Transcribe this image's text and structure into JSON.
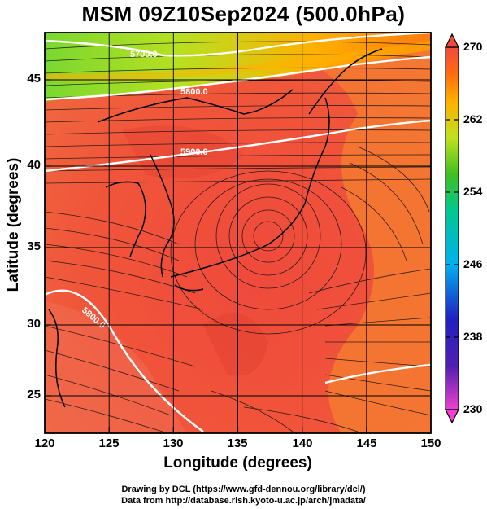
{
  "title": "MSM 09Z10Sep2024 (500.0hPa)",
  "x_axis": {
    "label": "Longitude (degrees)",
    "ticks": [
      "120",
      "125",
      "130",
      "135",
      "140",
      "145",
      "150"
    ]
  },
  "y_axis": {
    "label": "Latitude  (degrees)",
    "ticks": [
      "45",
      "40",
      "35",
      "30",
      "25"
    ]
  },
  "colorbar": {
    "ticks": [
      "270",
      "262",
      "254",
      "246",
      "238",
      "230"
    ],
    "min": 230,
    "max": 270,
    "colors": [
      "#f040d0",
      "#2020c0",
      "#00b0f0",
      "#00c890",
      "#40c020",
      "#c0e020",
      "#ffb000",
      "#ff6a10",
      "#f04a40"
    ]
  },
  "contours": {
    "labels": [
      "5700.0",
      "5800.0",
      "5900.0",
      "5800.0"
    ]
  },
  "credits": {
    "line1": "Drawing by DCL (https://www.gfd-dennou.org/library/dcl/)",
    "line2": "Data from http://database.rish.kyoto-u.ac.jp/arch/jmadata/"
  },
  "chart_data": {
    "type": "heatmap",
    "title": "MSM 09Z10Sep2024 (500.0hPa)",
    "xlabel": "Longitude (degrees)",
    "ylabel": "Latitude  (degrees)",
    "xlim": [
      120,
      150
    ],
    "ylim": [
      22.4,
      47.6
    ],
    "x_ticks": [
      120,
      125,
      130,
      135,
      140,
      145,
      150
    ],
    "y_ticks": [
      25,
      30,
      35,
      40,
      45
    ],
    "colorbar_range": [
      230,
      270
    ],
    "colorbar_ticks": [
      230,
      238,
      246,
      254,
      262,
      270
    ],
    "grid": true,
    "overlays": [
      "streamlines",
      "height contours",
      "coastlines"
    ],
    "contour_labels": [
      "5700.0",
      "5800.0",
      "5900.0",
      "5800.0"
    ]
  }
}
